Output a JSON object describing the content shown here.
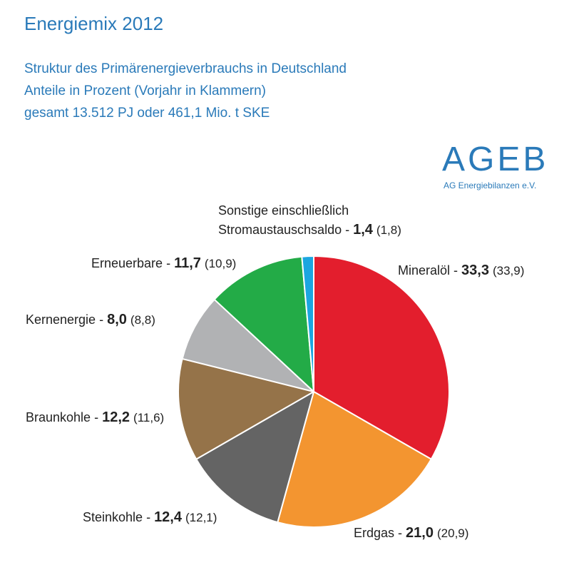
{
  "title": "Energiemix 2012",
  "subtitle_lines": [
    "Struktur des Primärenergieverbrauchs in Deutschland",
    "Anteile in Prozent (Vorjahr in Klammern)",
    "gesamt 13.512 PJ oder 461,1 Mio. t SKE"
  ],
  "logo": {
    "main": "AGEB",
    "sub": "AG Energiebilanzen e.V."
  },
  "colors": {
    "title": "#2a7ab9"
  },
  "chart_data": {
    "type": "pie",
    "unit": "%",
    "slices": [
      {
        "name": "Mineralöl",
        "value": 33.3,
        "value_text": "33,3",
        "prev_text": "(33,9)",
        "color": "#e31e2d"
      },
      {
        "name": "Erdgas",
        "value": 21.0,
        "value_text": "21,0",
        "prev_text": "(20,9)",
        "color": "#f39530"
      },
      {
        "name": "Steinkohle",
        "value": 12.4,
        "value_text": "12,4",
        "prev_text": "(12,1)",
        "color": "#646464"
      },
      {
        "name": "Braunkohle",
        "value": 12.2,
        "value_text": "12,2",
        "prev_text": "(11,6)",
        "color": "#957349"
      },
      {
        "name": "Kernenergie",
        "value": 8.0,
        "value_text": "8,0",
        "prev_text": "(8,8)",
        "color": "#b1b2b4"
      },
      {
        "name": "Erneuerbare",
        "value": 11.7,
        "value_text": "11,7",
        "prev_text": "(10,9)",
        "color": "#23ab47"
      },
      {
        "name": "Stromaustauschsaldo",
        "name_prefix": "Sonstige einschließlich",
        "value": 1.4,
        "value_text": "1,4",
        "prev_text": "(1,8)",
        "color": "#1ba6e0"
      }
    ]
  }
}
